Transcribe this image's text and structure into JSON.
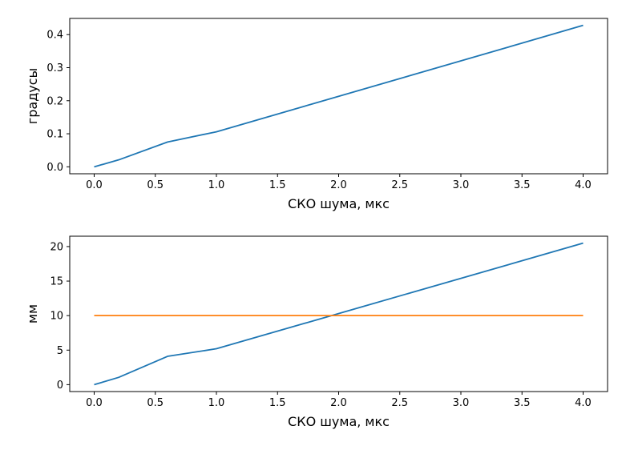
{
  "chart_data": [
    {
      "type": "line",
      "xlabel": "СКО шума, мкс",
      "ylabel": "градусы",
      "xlim": [
        -0.2,
        4.2
      ],
      "ylim": [
        -0.021,
        0.449
      ],
      "xticks": [
        "0.0",
        "0.5",
        "1.0",
        "1.5",
        "2.0",
        "2.5",
        "3.0",
        "3.5",
        "4.0"
      ],
      "yticks": [
        "0.0",
        "0.1",
        "0.2",
        "0.3",
        "0.4"
      ],
      "grid": false,
      "series": [
        {
          "color": "#1f77b4",
          "x": [
            0.0,
            0.2,
            0.6,
            1.0,
            4.0
          ],
          "y": [
            0.0,
            0.021,
            0.075,
            0.106,
            0.428
          ]
        }
      ]
    },
    {
      "type": "line",
      "xlabel": "СКО шума, мкс",
      "ylabel": "мм",
      "xlim": [
        -0.2,
        4.2
      ],
      "ylim": [
        -1.0,
        21.5
      ],
      "xticks": [
        "0.0",
        "0.5",
        "1.0",
        "1.5",
        "2.0",
        "2.5",
        "3.0",
        "3.5",
        "4.0"
      ],
      "yticks": [
        "0",
        "5",
        "10",
        "15",
        "20"
      ],
      "grid": false,
      "series": [
        {
          "color": "#1f77b4",
          "x": [
            0.0,
            0.2,
            0.6,
            1.0,
            4.0
          ],
          "y": [
            0.0,
            1.05,
            4.1,
            5.2,
            20.5
          ]
        },
        {
          "color": "#ff7f0e",
          "x": [
            0.0,
            4.0
          ],
          "y": [
            10.0,
            10.0
          ]
        }
      ]
    }
  ]
}
